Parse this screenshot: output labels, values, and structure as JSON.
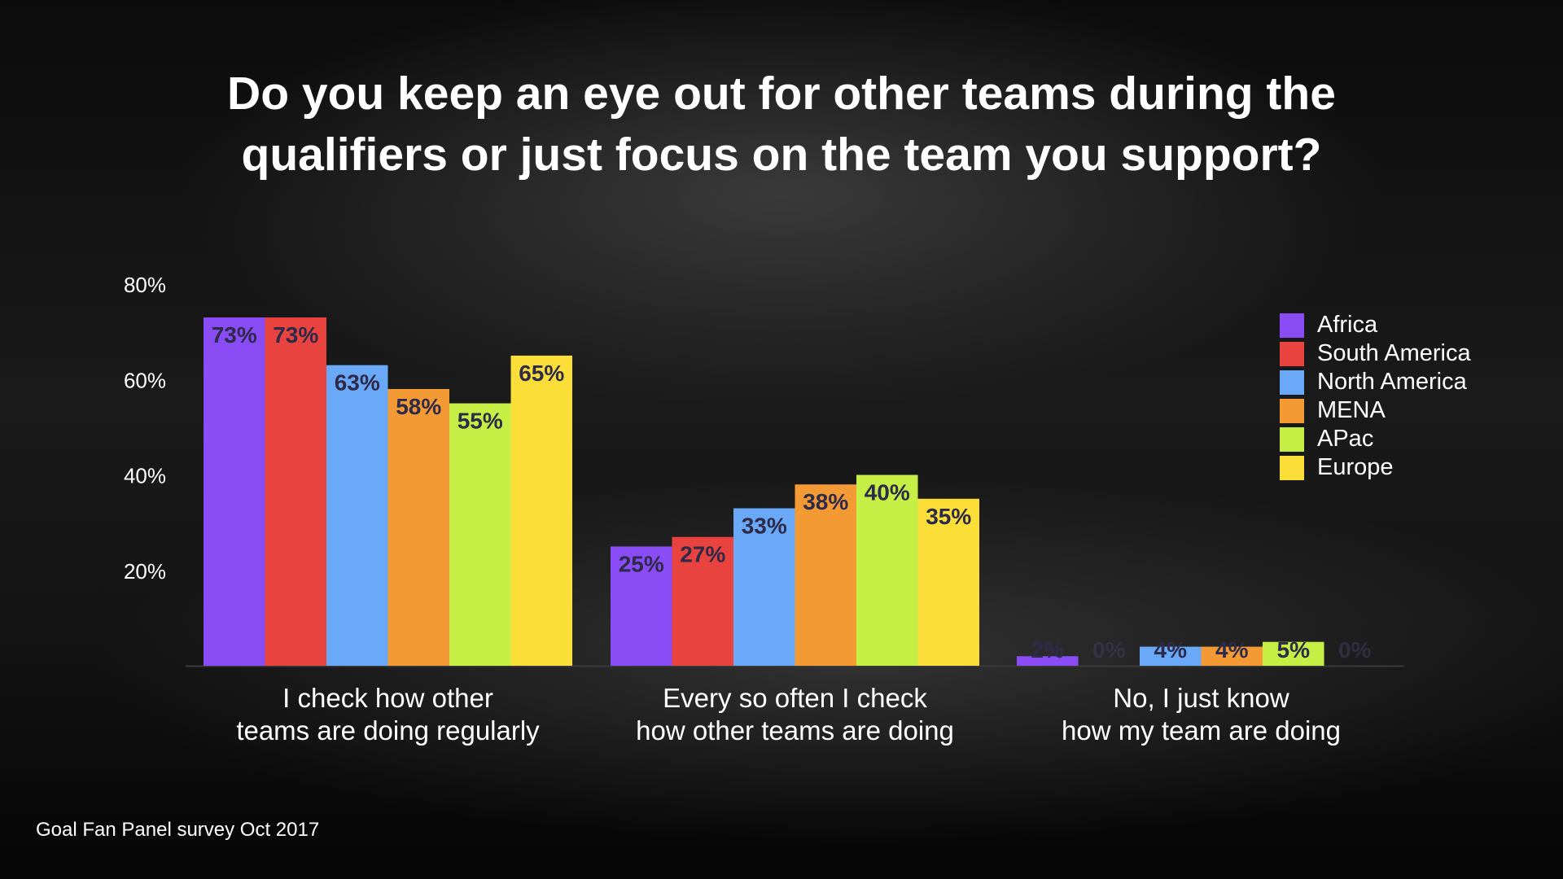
{
  "chart_data": {
    "type": "bar",
    "title": [
      "Do you keep an eye out for other teams during the",
      "qualifiers or just focus on the team you support?"
    ],
    "categories": [
      [
        "I check how other",
        "teams are doing regularly"
      ],
      [
        "Every so often I check",
        "how other teams are doing"
      ],
      [
        "No, I just know",
        "how my team are doing"
      ]
    ],
    "series": [
      {
        "name": "Africa",
        "color": "#8a4cf5",
        "values": [
          73,
          25,
          2
        ]
      },
      {
        "name": "South America",
        "color": "#e8433f",
        "values": [
          73,
          27,
          0
        ]
      },
      {
        "name": "North America",
        "color": "#6aa8f8",
        "values": [
          63,
          33,
          4
        ]
      },
      {
        "name": "MENA",
        "color": "#f39a35",
        "values": [
          58,
          38,
          4
        ]
      },
      {
        "name": "APac",
        "color": "#c5ef45",
        "values": [
          55,
          40,
          5
        ]
      },
      {
        "name": "Europe",
        "color": "#fbdf38",
        "values": [
          65,
          35,
          0
        ]
      }
    ],
    "value_labels": [
      [
        "73%",
        "25%",
        "2%"
      ],
      [
        "73%",
        "27%",
        "0%"
      ],
      [
        "63%",
        "33%",
        "4%"
      ],
      [
        "58%",
        "38%",
        "4%"
      ],
      [
        "55%",
        "40%",
        "5%"
      ],
      [
        "65%",
        "35%",
        "0%"
      ]
    ],
    "yticks": [
      {
        "value": 20,
        "label": "20%"
      },
      {
        "value": 40,
        "label": "40%"
      },
      {
        "value": 60,
        "label": "60%"
      },
      {
        "value": 80,
        "label": "80%"
      }
    ],
    "ylim": [
      0,
      80
    ],
    "legend_position": "right",
    "grid": false
  },
  "source": "Goal Fan Panel survey Oct 2017",
  "colors": {
    "value_label": "#2d2a4a",
    "text": "#ffffff",
    "axis": "#3a3a3a"
  }
}
